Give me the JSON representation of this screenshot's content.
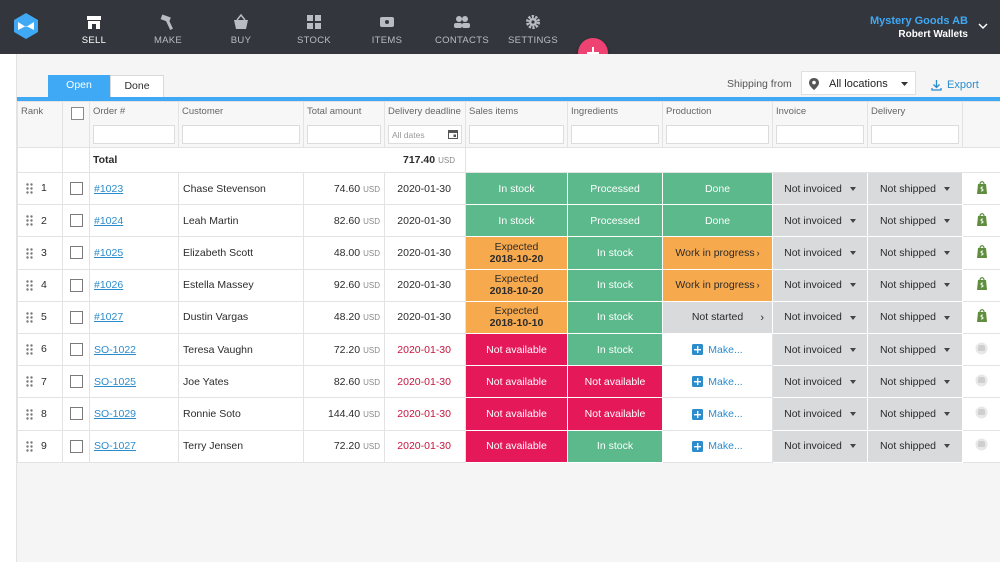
{
  "nav": {
    "items": [
      {
        "label": "SELL",
        "icon": "store-icon"
      },
      {
        "label": "MAKE",
        "icon": "hammer-icon"
      },
      {
        "label": "BUY",
        "icon": "basket-icon"
      },
      {
        "label": "STOCK",
        "icon": "boxes-icon"
      },
      {
        "label": "ITEMS",
        "icon": "tag-icon"
      },
      {
        "label": "CONTACTS",
        "icon": "people-icon"
      },
      {
        "label": "SETTINGS",
        "icon": "gear-icon"
      }
    ],
    "active": "SELL"
  },
  "account": {
    "company": "Mystery Goods AB",
    "user": "Robert Wallets"
  },
  "tabs": {
    "open": "Open",
    "done": "Done"
  },
  "shipping": {
    "label": "Shipping from",
    "value": "All locations"
  },
  "export_label": "Export",
  "columns": {
    "rank": "Rank",
    "order": "Order #",
    "customer": "Customer",
    "total": "Total amount",
    "deadline": "Delivery deadline",
    "sales_items": "Sales items",
    "ingredients": "Ingredients",
    "production": "Production",
    "invoice": "Invoice",
    "delivery": "Delivery"
  },
  "filters": {
    "deadline_placeholder": "All dates"
  },
  "totals": {
    "label": "Total",
    "amount": "717.40",
    "currency": "USD"
  },
  "currency": "USD",
  "colors": {
    "accent": "#3fa9f5",
    "green": "#5bb98b",
    "orange": "#f7a94d",
    "red": "#e5185a",
    "grey": "#d8dadc",
    "late": "#c8143c"
  },
  "rows": [
    {
      "rank": "1",
      "order": "#1023",
      "customer": "Chase Stevenson",
      "amount": "74.60",
      "deadline": "2020-01-30",
      "late": false,
      "sales": {
        "kind": "green",
        "text": "In stock"
      },
      "ingredients": {
        "kind": "green",
        "text": "Processed"
      },
      "production": {
        "kind": "green",
        "text": "Done"
      },
      "invoice": "Not invoiced",
      "delivery": "Not shipped",
      "shop": "shopify-icon"
    },
    {
      "rank": "2",
      "order": "#1024",
      "customer": "Leah Martin",
      "amount": "82.60",
      "deadline": "2020-01-30",
      "late": false,
      "sales": {
        "kind": "green",
        "text": "In stock"
      },
      "ingredients": {
        "kind": "green",
        "text": "Processed"
      },
      "production": {
        "kind": "green",
        "text": "Done"
      },
      "invoice": "Not invoiced",
      "delivery": "Not shipped",
      "shop": "shopify-icon"
    },
    {
      "rank": "3",
      "order": "#1025",
      "customer": "Elizabeth Scott",
      "amount": "48.00",
      "deadline": "2020-01-30",
      "late": false,
      "sales": {
        "kind": "orange",
        "text": "Expected",
        "date": "2018-10-20"
      },
      "ingredients": {
        "kind": "green",
        "text": "In stock"
      },
      "production": {
        "kind": "orange",
        "text": "Work in progress"
      },
      "invoice": "Not invoiced",
      "delivery": "Not shipped",
      "shop": "shopify-icon"
    },
    {
      "rank": "4",
      "order": "#1026",
      "customer": "Estella Massey",
      "amount": "92.60",
      "deadline": "2020-01-30",
      "late": false,
      "sales": {
        "kind": "orange",
        "text": "Expected",
        "date": "2018-10-20"
      },
      "ingredients": {
        "kind": "green",
        "text": "In stock"
      },
      "production": {
        "kind": "orange",
        "text": "Work in progress"
      },
      "invoice": "Not invoiced",
      "delivery": "Not shipped",
      "shop": "shopify-icon"
    },
    {
      "rank": "5",
      "order": "#1027",
      "customer": "Dustin Vargas",
      "amount": "48.20",
      "deadline": "2020-01-30",
      "late": false,
      "sales": {
        "kind": "orange",
        "text": "Expected",
        "date": "2018-10-10"
      },
      "ingredients": {
        "kind": "green",
        "text": "In stock"
      },
      "production": {
        "kind": "grey",
        "text": "Not started"
      },
      "invoice": "Not invoiced",
      "delivery": "Not shipped",
      "shop": "shopify-icon"
    },
    {
      "rank": "6",
      "order": "SO-1022",
      "customer": "Teresa Vaughn",
      "amount": "72.20",
      "deadline": "2020-01-30",
      "late": true,
      "sales": {
        "kind": "red",
        "text": "Not available"
      },
      "ingredients": {
        "kind": "green",
        "text": "In stock"
      },
      "production": {
        "kind": "white",
        "text": "Make..."
      },
      "invoice": "Not invoiced",
      "delivery": "Not shipped",
      "shop": "generic-shop-icon"
    },
    {
      "rank": "7",
      "order": "SO-1025",
      "customer": "Joe Yates",
      "amount": "82.60",
      "deadline": "2020-01-30",
      "late": true,
      "sales": {
        "kind": "red",
        "text": "Not available"
      },
      "ingredients": {
        "kind": "red",
        "text": "Not available"
      },
      "production": {
        "kind": "white",
        "text": "Make..."
      },
      "invoice": "Not invoiced",
      "delivery": "Not shipped",
      "shop": "generic-shop-icon"
    },
    {
      "rank": "8",
      "order": "SO-1029",
      "customer": "Ronnie Soto",
      "amount": "144.40",
      "deadline": "2020-01-30",
      "late": true,
      "sales": {
        "kind": "red",
        "text": "Not available"
      },
      "ingredients": {
        "kind": "red",
        "text": "Not available"
      },
      "production": {
        "kind": "white",
        "text": "Make..."
      },
      "invoice": "Not invoiced",
      "delivery": "Not shipped",
      "shop": "generic-shop-icon"
    },
    {
      "rank": "9",
      "order": "SO-1027",
      "customer": "Terry Jensen",
      "amount": "72.20",
      "deadline": "2020-01-30",
      "late": true,
      "sales": {
        "kind": "red",
        "text": "Not available"
      },
      "ingredients": {
        "kind": "green",
        "text": "In stock"
      },
      "production": {
        "kind": "white",
        "text": "Make..."
      },
      "invoice": "Not invoiced",
      "delivery": "Not shipped",
      "shop": "generic-shop-icon"
    }
  ]
}
